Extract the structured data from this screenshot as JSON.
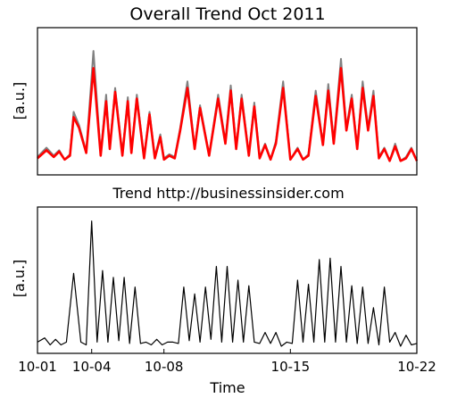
{
  "chart_data": [
    {
      "type": "line",
      "title": "Overall Trend Oct 2011",
      "ylabel": "[a.u.]",
      "xlim": [
        0,
        21
      ],
      "ylim": [
        0,
        1
      ],
      "yticks_shown": false,
      "series": [
        {
          "color": "#808080",
          "x": [
            0,
            0.5,
            0.9,
            1.2,
            1.5,
            1.8,
            2.0,
            2.3,
            2.7,
            3.1,
            3.5,
            3.8,
            4.0,
            4.3,
            4.7,
            5.0,
            5.2,
            5.5,
            5.9,
            6.2,
            6.5,
            6.8,
            7.0,
            7.3,
            7.6,
            7.9,
            8.3,
            8.7,
            9.0,
            9.5,
            10.0,
            10.4,
            10.7,
            11.0,
            11.3,
            11.7,
            12.0,
            12.3,
            12.6,
            12.9,
            13.2,
            13.6,
            14.0,
            14.4,
            14.7,
            15.0,
            15.4,
            15.8,
            16.1,
            16.4,
            16.8,
            17.1,
            17.4,
            17.7,
            18.0,
            18.3,
            18.6,
            18.9,
            19.2,
            19.5,
            19.8,
            20.1,
            20.4,
            20.7,
            21.0
          ],
          "y": [
            0.08,
            0.15,
            0.09,
            0.13,
            0.06,
            0.1,
            0.42,
            0.32,
            0.12,
            0.88,
            0.1,
            0.55,
            0.15,
            0.6,
            0.1,
            0.53,
            0.12,
            0.55,
            0.08,
            0.42,
            0.08,
            0.25,
            0.07,
            0.1,
            0.08,
            0.3,
            0.65,
            0.15,
            0.47,
            0.1,
            0.55,
            0.2,
            0.62,
            0.15,
            0.55,
            0.1,
            0.49,
            0.08,
            0.18,
            0.06,
            0.2,
            0.65,
            0.06,
            0.15,
            0.06,
            0.1,
            0.58,
            0.18,
            0.63,
            0.2,
            0.82,
            0.3,
            0.55,
            0.15,
            0.65,
            0.3,
            0.58,
            0.08,
            0.15,
            0.05,
            0.18,
            0.05,
            0.08,
            0.15,
            0.05
          ]
        },
        {
          "color": "#ff0000",
          "x": [
            0,
            0.5,
            0.9,
            1.2,
            1.5,
            1.8,
            2.0,
            2.3,
            2.7,
            3.1,
            3.5,
            3.8,
            4.0,
            4.3,
            4.7,
            5.0,
            5.2,
            5.5,
            5.9,
            6.2,
            6.5,
            6.8,
            7.0,
            7.3,
            7.6,
            7.9,
            8.3,
            8.7,
            9.0,
            9.5,
            10.0,
            10.4,
            10.7,
            11.0,
            11.3,
            11.7,
            12.0,
            12.3,
            12.6,
            12.9,
            13.2,
            13.6,
            14.0,
            14.4,
            14.7,
            15.0,
            15.4,
            15.8,
            16.1,
            16.4,
            16.8,
            17.1,
            17.4,
            17.7,
            18.0,
            18.3,
            18.6,
            18.9,
            19.2,
            19.5,
            19.8,
            20.1,
            20.4,
            20.7,
            21.0
          ],
          "y": [
            0.07,
            0.13,
            0.08,
            0.12,
            0.06,
            0.09,
            0.38,
            0.3,
            0.11,
            0.75,
            0.09,
            0.5,
            0.14,
            0.57,
            0.09,
            0.5,
            0.11,
            0.52,
            0.07,
            0.4,
            0.07,
            0.23,
            0.06,
            0.09,
            0.07,
            0.28,
            0.6,
            0.14,
            0.45,
            0.09,
            0.52,
            0.18,
            0.58,
            0.14,
            0.52,
            0.09,
            0.46,
            0.07,
            0.17,
            0.06,
            0.18,
            0.6,
            0.06,
            0.14,
            0.06,
            0.09,
            0.54,
            0.17,
            0.58,
            0.18,
            0.75,
            0.28,
            0.52,
            0.14,
            0.6,
            0.28,
            0.54,
            0.07,
            0.14,
            0.05,
            0.16,
            0.05,
            0.07,
            0.14,
            0.05
          ]
        }
      ]
    },
    {
      "type": "line",
      "title": "Trend http://businessinsider.com",
      "ylabel": "[a.u.]",
      "xlabel": "Time",
      "xlim": [
        0,
        21
      ],
      "ylim": [
        0,
        1
      ],
      "xticks": [
        {
          "value": 0,
          "label": "10-01"
        },
        {
          "value": 3,
          "label": "10-04"
        },
        {
          "value": 7,
          "label": "10-08"
        },
        {
          "value": 14,
          "label": "10-15"
        },
        {
          "value": 21,
          "label": "10-22"
        }
      ],
      "series": [
        {
          "color": "#000000",
          "x": [
            0,
            0.4,
            0.7,
            1.0,
            1.3,
            1.6,
            2.0,
            2.4,
            2.7,
            3.0,
            3.3,
            3.6,
            3.9,
            4.2,
            4.5,
            4.8,
            5.1,
            5.4,
            5.7,
            6.0,
            6.3,
            6.6,
            6.9,
            7.2,
            7.5,
            7.8,
            8.1,
            8.4,
            8.7,
            9.0,
            9.3,
            9.6,
            9.9,
            10.2,
            10.5,
            10.8,
            11.1,
            11.4,
            11.7,
            12.0,
            12.3,
            12.6,
            12.9,
            13.2,
            13.5,
            13.8,
            14.1,
            14.4,
            14.7,
            15.0,
            15.3,
            15.6,
            15.9,
            16.2,
            16.5,
            16.8,
            17.1,
            17.4,
            17.7,
            18.0,
            18.3,
            18.6,
            18.9,
            19.2,
            19.5,
            19.8,
            20.1,
            20.4,
            20.7,
            21.0
          ],
          "y": [
            0.05,
            0.08,
            0.03,
            0.07,
            0.03,
            0.05,
            0.55,
            0.05,
            0.03,
            0.93,
            0.05,
            0.57,
            0.05,
            0.52,
            0.06,
            0.52,
            0.04,
            0.45,
            0.04,
            0.05,
            0.03,
            0.07,
            0.03,
            0.05,
            0.05,
            0.04,
            0.45,
            0.06,
            0.4,
            0.05,
            0.45,
            0.07,
            0.6,
            0.05,
            0.6,
            0.05,
            0.5,
            0.05,
            0.46,
            0.05,
            0.04,
            0.12,
            0.04,
            0.12,
            0.02,
            0.05,
            0.04,
            0.5,
            0.05,
            0.47,
            0.05,
            0.65,
            0.05,
            0.66,
            0.05,
            0.6,
            0.05,
            0.46,
            0.04,
            0.45,
            0.04,
            0.3,
            0.03,
            0.45,
            0.05,
            0.12,
            0.02,
            0.1,
            0.03,
            0.04
          ]
        }
      ]
    }
  ]
}
